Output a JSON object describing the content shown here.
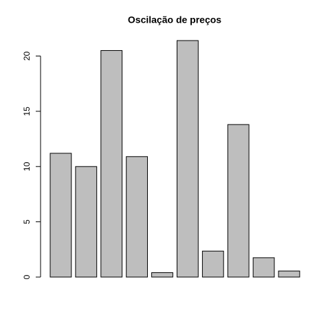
{
  "chart_data": {
    "type": "bar",
    "title": "Oscilação de preços",
    "categories": [
      null,
      null,
      null,
      null,
      null,
      null,
      null,
      null,
      null,
      null
    ],
    "values": [
      11.2,
      10.0,
      20.5,
      10.9,
      0.4,
      21.4,
      2.35,
      13.8,
      1.75,
      0.55
    ],
    "color": "#bebebe",
    "ylim": [
      0,
      21.4
    ],
    "yticks": [
      0,
      5,
      10,
      15,
      20
    ],
    "grid": false
  }
}
